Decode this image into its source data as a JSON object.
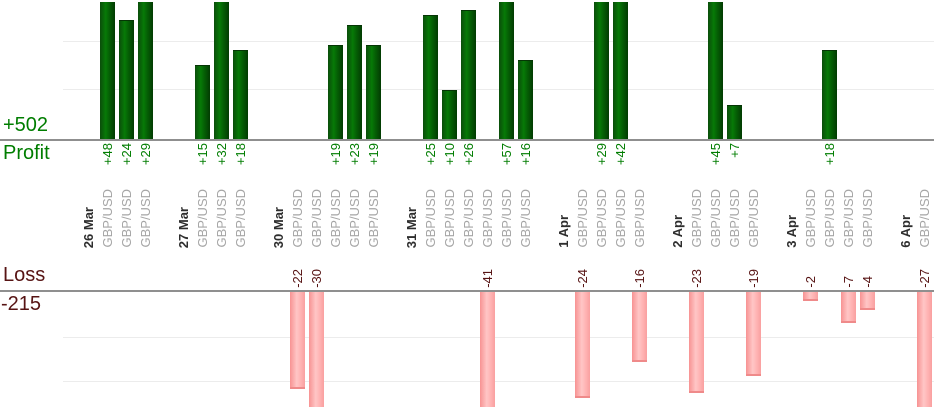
{
  "chart": {
    "instrument_label": "GBP/USD",
    "colors": {
      "profit_text": "#007d00",
      "profit_bar": "#077a07",
      "loss_text": "#571414",
      "loss_bar": "#ffb4b4",
      "date_text": "#2e2e2e",
      "instrument_text": "#a6a6a6",
      "axis_line": "#8f8f8f",
      "gridline": "#ececec"
    }
  },
  "chart_data": {
    "type": "bar",
    "orientation": "vertical-dual-axis",
    "description_visible": false,
    "instrument_per_trade": "GBP/USD",
    "groups": [
      {
        "date": "26 Mar",
        "values": [
          48,
          24,
          29
        ]
      },
      {
        "date": "27 Mar",
        "values": [
          15,
          32,
          18
        ]
      },
      {
        "date": "30 Mar",
        "values": [
          -22,
          -30,
          19,
          23,
          19
        ]
      },
      {
        "date": "31 Mar",
        "values": [
          25,
          10,
          26,
          -41,
          57,
          16
        ]
      },
      {
        "date": "1 Apr",
        "values": [
          -24,
          29,
          42,
          -16
        ]
      },
      {
        "date": "2 Apr",
        "values": [
          -23,
          45,
          7,
          -19
        ]
      },
      {
        "date": "3 Apr",
        "values": [
          -2,
          18,
          -7,
          -4
        ]
      },
      {
        "date": "6 Apr",
        "values": [
          -27
        ]
      }
    ],
    "profit_axis": {
      "label": "Profit",
      "total": "+502",
      "gridline_step": 10,
      "visible_max": 28,
      "cropped_top": true
    },
    "loss_axis": {
      "label": "Loss",
      "total": "-215",
      "gridline_step": 10,
      "visible_min": -26,
      "cropped_bottom": true
    },
    "grid": true,
    "legend": "none"
  }
}
